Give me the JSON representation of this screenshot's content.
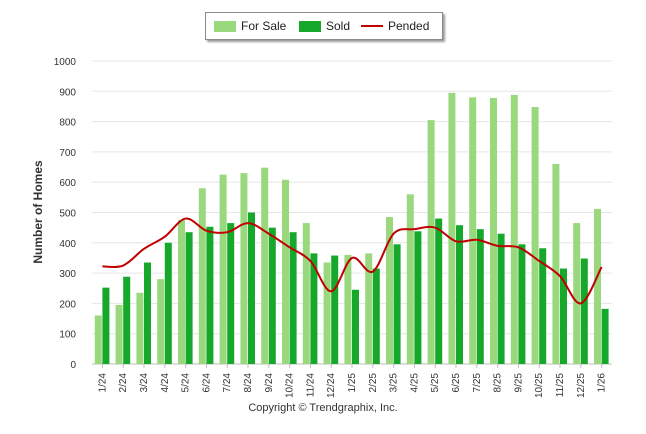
{
  "chart_data": {
    "type": "bar",
    "categories": [
      "1/24",
      "2/24",
      "3/24",
      "4/24",
      "5/24",
      "6/24",
      "7/24",
      "8/24",
      "9/24",
      "10/24",
      "11/24",
      "12/24",
      "1/25",
      "2/25",
      "3/25",
      "4/25",
      "5/25",
      "6/25",
      "7/25",
      "8/25",
      "9/25",
      "10/25",
      "11/25",
      "12/25",
      "1/26"
    ],
    "series": [
      {
        "name": "For Sale",
        "kind": "bar",
        "color": "#9ad87e",
        "values": [
          160,
          195,
          235,
          280,
          475,
          580,
          625,
          630,
          648,
          608,
          465,
          335,
          360,
          365,
          485,
          560,
          805,
          895,
          880,
          878,
          888,
          848,
          660,
          465,
          512
        ]
      },
      {
        "name": "Sold",
        "kind": "bar",
        "color": "#16a82a",
        "values": [
          252,
          288,
          335,
          400,
          435,
          453,
          465,
          500,
          450,
          435,
          365,
          358,
          245,
          315,
          395,
          438,
          480,
          458,
          445,
          430,
          395,
          382,
          315,
          348,
          182
        ]
      },
      {
        "name": "Pended",
        "kind": "line",
        "color": "#c00000",
        "values": [
          322,
          325,
          380,
          420,
          480,
          440,
          435,
          465,
          430,
          385,
          340,
          240,
          350,
          305,
          430,
          445,
          450,
          405,
          410,
          390,
          385,
          340,
          290,
          200,
          320
        ]
      }
    ],
    "ylabel": "Number of Homes",
    "xlabel": "",
    "ylim": [
      0,
      1000
    ],
    "yticks": [
      0,
      100,
      200,
      300,
      400,
      500,
      600,
      700,
      800,
      900,
      1000
    ],
    "grid": "horizontal",
    "legend_position": "top-center"
  },
  "footer": {
    "copyright": "Copyright © Trendgraphix, Inc."
  }
}
